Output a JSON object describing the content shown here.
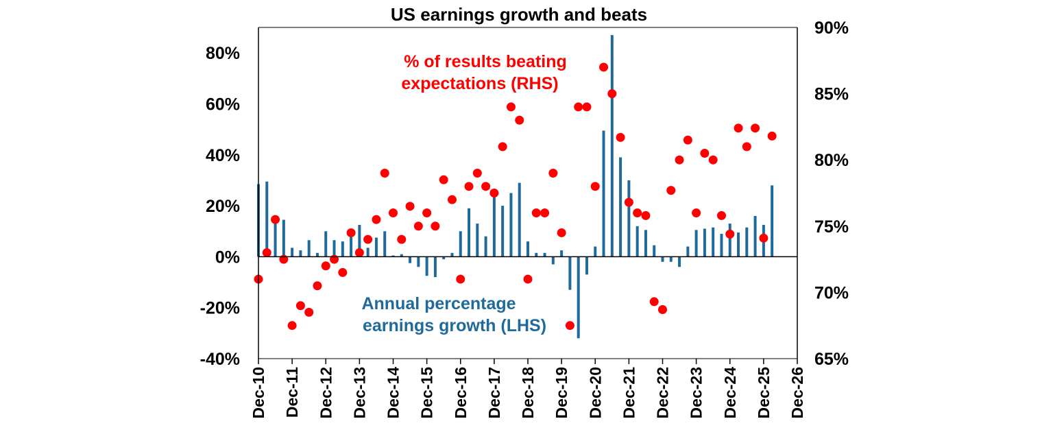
{
  "colors": {
    "bars": "#1F6A9A",
    "dots": "#FF0000",
    "axis": "#000000"
  },
  "chart_data": {
    "type": "bar+scatter",
    "title": "US earnings growth and beats",
    "x_ticks": [
      "Dec-10",
      "Dec-11",
      "Dec-12",
      "Dec-13",
      "Dec-14",
      "Dec-15",
      "Dec-16",
      "Dec-17",
      "Dec-18",
      "Dec-19",
      "Dec-20",
      "Dec-21",
      "Dec-22",
      "Dec-23",
      "Dec-24",
      "Dec-25",
      "Dec-26"
    ],
    "left_axis": {
      "ylim": [
        -40,
        90
      ],
      "ticks": [
        -40,
        -20,
        0,
        20,
        40,
        60,
        80
      ],
      "tick_labels": [
        "-40%",
        "-20%",
        "0%",
        "20%",
        "40%",
        "60%",
        "80%"
      ]
    },
    "right_axis": {
      "ylim": [
        65,
        90
      ],
      "ticks": [
        65,
        70,
        75,
        80,
        85,
        90
      ],
      "tick_labels": [
        "65%",
        "70%",
        "75%",
        "80%",
        "85%",
        "90%"
      ]
    },
    "annotations": {
      "beats": [
        "% of results beating",
        "expectations (RHS)"
      ],
      "growth": [
        "Annual percentage",
        "earnings growth (LHS)"
      ]
    },
    "series": [
      {
        "name": "Annual percentage earnings growth (LHS)",
        "kind": "bar",
        "axis": "left",
        "x": [
          "Dec-10",
          "Mar-11",
          "Jun-11",
          "Sep-11",
          "Dec-11",
          "Mar-12",
          "Jun-12",
          "Sep-12",
          "Dec-12",
          "Mar-13",
          "Jun-13",
          "Sep-13",
          "Dec-13",
          "Mar-14",
          "Jun-14",
          "Sep-14",
          "Dec-14",
          "Mar-15",
          "Jun-15",
          "Sep-15",
          "Dec-15",
          "Mar-16",
          "Jun-16",
          "Sep-16",
          "Dec-16",
          "Mar-17",
          "Jun-17",
          "Sep-17",
          "Dec-17",
          "Mar-18",
          "Jun-18",
          "Sep-18",
          "Dec-18",
          "Mar-19",
          "Jun-19",
          "Sep-19",
          "Dec-19",
          "Mar-20",
          "Jun-20",
          "Sep-20",
          "Dec-20",
          "Mar-21",
          "Jun-21",
          "Sep-21",
          "Dec-21",
          "Mar-22",
          "Jun-22",
          "Sep-22",
          "Dec-22",
          "Mar-23",
          "Jun-23",
          "Sep-23",
          "Dec-23",
          "Mar-24",
          "Jun-24",
          "Sep-24",
          "Dec-24",
          "Mar-25",
          "Jun-25",
          "Sep-25",
          "Dec-25",
          "Mar-26"
        ],
        "values": [
          28.5,
          29.5,
          13.5,
          14.5,
          3.5,
          2.5,
          6.5,
          1.5,
          10,
          6.5,
          6,
          8.5,
          12.5,
          3.5,
          7.5,
          10,
          0.5,
          1,
          -2.5,
          -4,
          -7.5,
          -8,
          -1,
          1.5,
          10,
          19,
          13,
          8,
          26,
          20,
          25,
          29,
          6,
          1.5,
          1.5,
          -3,
          2.5,
          -13,
          -32,
          -7,
          4,
          49.5,
          87,
          39,
          30,
          12,
          10.5,
          4.5,
          -2,
          -2,
          -4,
          4,
          10.5,
          11,
          11.5,
          9,
          13,
          9.5,
          11.5,
          16,
          12.5,
          28
        ]
      },
      {
        "name": "% of results beating expectations (RHS)",
        "kind": "scatter",
        "axis": "right",
        "x": [
          "Dec-10",
          "Mar-11",
          "Jun-11",
          "Sep-11",
          "Dec-11",
          "Mar-12",
          "Jun-12",
          "Sep-12",
          "Dec-12",
          "Mar-13",
          "Jun-13",
          "Sep-13",
          "Dec-13",
          "Mar-14",
          "Jun-14",
          "Sep-14",
          "Dec-14",
          "Mar-15",
          "Jun-15",
          "Sep-15",
          "Dec-15",
          "Mar-16",
          "Jun-16",
          "Sep-16",
          "Dec-16",
          "Mar-17",
          "Jun-17",
          "Sep-17",
          "Dec-17",
          "Mar-18",
          "Jun-18",
          "Sep-18",
          "Dec-18",
          "Mar-19",
          "Jun-19",
          "Sep-19",
          "Dec-19",
          "Mar-20",
          "Jun-20",
          "Sep-20",
          "Dec-20",
          "Mar-21",
          "Jun-21",
          "Sep-21",
          "Dec-21",
          "Mar-22",
          "Jun-22",
          "Sep-22",
          "Dec-22",
          "Mar-23",
          "Jun-23",
          "Sep-23",
          "Dec-23",
          "Mar-24",
          "Jun-24",
          "Sep-24",
          "Dec-24",
          "Mar-25",
          "Jun-25",
          "Sep-25",
          "Dec-25",
          "Mar-26"
        ],
        "values": [
          71,
          73,
          75.5,
          72.5,
          67.5,
          69,
          68.5,
          70.5,
          72,
          72.5,
          71.5,
          74.5,
          73,
          74,
          75.5,
          79,
          76,
          74,
          76.5,
          75,
          76,
          75,
          78.5,
          77,
          71,
          78,
          79,
          78,
          77.5,
          81,
          84,
          83,
          71,
          76,
          76,
          79,
          74.5,
          67.5,
          84,
          84,
          78,
          87,
          85,
          81.7,
          76.8,
          76,
          75.8,
          69.3,
          68.7,
          77.7,
          80,
          81.5,
          76,
          80.5,
          80,
          75.8,
          74.4,
          82.4,
          81,
          82.4,
          74.1,
          81.8
        ]
      }
    ]
  }
}
